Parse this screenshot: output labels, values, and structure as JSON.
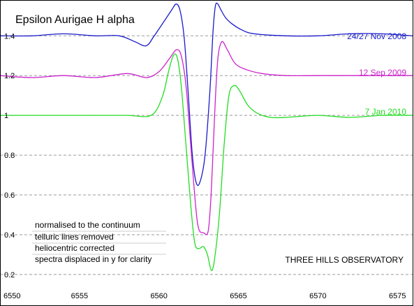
{
  "chart_data": {
    "type": "line",
    "title": "Epsilon Aurigae  H alpha",
    "xlabel": "",
    "ylabel": "",
    "xlim": [
      6550,
      6576
    ],
    "ylim": [
      0.14,
      1.58
    ],
    "xticks": [
      6550,
      6555,
      6560,
      6565,
      6570,
      6575
    ],
    "yticks": [
      0.2,
      0.4,
      0.6,
      0.8,
      1,
      1.2,
      1.4
    ],
    "ytick_labels": [
      "0.2",
      "0.4",
      "0.6",
      "0.8",
      "1",
      "1.2",
      "1.4"
    ],
    "grid": "horizontal dashed",
    "notes": [
      "normalised to the continuum",
      "telluric lines removed",
      "heliocentric corrected",
      "spectra displaced in y for clarity"
    ],
    "credit": "THREE HILLS OBSERVATORY",
    "series": [
      {
        "name": "24/27 Nov 2008",
        "color": "#1a1acc",
        "x": [
          6550,
          6552,
          6554,
          6556,
          6557.5,
          6558.5,
          6559.2,
          6559.7,
          6560.3,
          6560.8,
          6561.1,
          6561.35,
          6561.6,
          6561.85,
          6562.1,
          6562.35,
          6562.6,
          6562.9,
          6563.2,
          6563.4,
          6563.55,
          6563.7,
          6563.9,
          6564.2,
          6564.6,
          6565.2,
          6566,
          6568,
          6570,
          6572,
          6574,
          6576
        ],
        "y": [
          1.4,
          1.4,
          1.41,
          1.4,
          1.4,
          1.37,
          1.35,
          1.4,
          1.47,
          1.53,
          1.56,
          1.52,
          1.38,
          1.1,
          0.8,
          0.66,
          0.67,
          0.8,
          1.12,
          1.42,
          1.55,
          1.56,
          1.53,
          1.49,
          1.46,
          1.43,
          1.41,
          1.4,
          1.4,
          1.41,
          1.41,
          1.4
        ]
      },
      {
        "name": "12 Sep 2009",
        "color": "#cc22cc",
        "x": [
          6550,
          6552,
          6554,
          6556,
          6558,
          6559.2,
          6560,
          6560.7,
          6561.1,
          6561.4,
          6561.7,
          6562,
          6562.3,
          6562.5,
          6562.8,
          6563.1,
          6563.3,
          6563.5,
          6563.7,
          6563.95,
          6564.3,
          6564.8,
          6565.5,
          6566.5,
          6568,
          6570,
          6572,
          6574,
          6576
        ],
        "y": [
          1.2,
          1.19,
          1.2,
          1.19,
          1.21,
          1.19,
          1.22,
          1.29,
          1.33,
          1.3,
          1.15,
          0.85,
          0.55,
          0.43,
          0.41,
          0.42,
          0.63,
          1.0,
          1.28,
          1.37,
          1.33,
          1.26,
          1.23,
          1.21,
          1.2,
          1.2,
          1.2,
          1.2,
          1.2
        ]
      },
      {
        "name": "7 Jan 2010",
        "color": "#22dd22",
        "x": [
          6550,
          6552,
          6554,
          6556,
          6558,
          6559.5,
          6560.2,
          6560.6,
          6560.9,
          6561.15,
          6561.4,
          6561.7,
          6562,
          6562.25,
          6562.5,
          6562.8,
          6563.05,
          6563.3,
          6563.5,
          6563.8,
          6564.1,
          6564.4,
          6564.75,
          6565.1,
          6565.6,
          6566.2,
          6567,
          6568,
          6570,
          6572,
          6574,
          6576
        ],
        "y": [
          1.0,
          1.0,
          1.0,
          1.0,
          1.0,
          1.0,
          1.09,
          1.22,
          1.3,
          1.29,
          1.15,
          0.85,
          0.55,
          0.36,
          0.33,
          0.34,
          0.3,
          0.22,
          0.28,
          0.5,
          0.85,
          1.1,
          1.15,
          1.12,
          1.05,
          1.01,
          0.99,
          0.99,
          1.0,
          0.99,
          1.0,
          1.0
        ]
      }
    ]
  }
}
